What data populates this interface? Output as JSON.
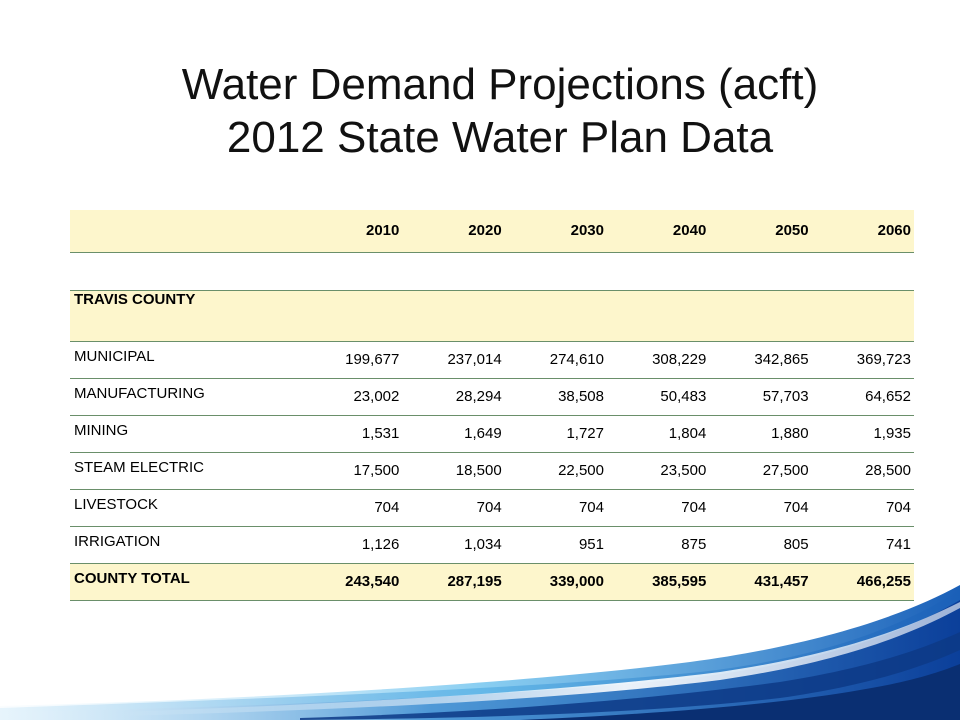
{
  "title": {
    "line1": "Water Demand Projections (acft)",
    "line2": "2012 State Water Plan Data"
  },
  "table": {
    "years": [
      "2010",
      "2020",
      "2030",
      "2040",
      "2050",
      "2060"
    ],
    "section_label": "TRAVIS COUNTY",
    "rows": [
      {
        "category": "MUNICIPAL",
        "values": [
          "199,677",
          "237,014",
          "274,610",
          "308,229",
          "342,865",
          "369,723"
        ]
      },
      {
        "category": "MANUFACTURING",
        "values": [
          "23,002",
          "28,294",
          "38,508",
          "50,483",
          "57,703",
          "64,652"
        ]
      },
      {
        "category": "MINING",
        "values": [
          "1,531",
          "1,649",
          "1,727",
          "1,804",
          "1,880",
          "1,935"
        ]
      },
      {
        "category": "STEAM ELECTRIC",
        "values": [
          "17,500",
          "18,500",
          "22,500",
          "23,500",
          "27,500",
          "28,500"
        ]
      },
      {
        "category": "LIVESTOCK",
        "values": [
          "704",
          "704",
          "704",
          "704",
          "704",
          "704"
        ]
      },
      {
        "category": "IRRIGATION",
        "values": [
          "1,126",
          "1,034",
          "951",
          "875",
          "805",
          "741"
        ]
      }
    ],
    "total": {
      "category": "COUNTY TOTAL",
      "values": [
        "243,540",
        "287,195",
        "339,000",
        "385,595",
        "431,457",
        "466,255"
      ]
    }
  },
  "colors": {
    "highlight_row": "#fdf6cc",
    "row_divider": "#6a8f6a",
    "wave_dark": "#0b3f9a",
    "wave_light": "#4fb3e8"
  }
}
